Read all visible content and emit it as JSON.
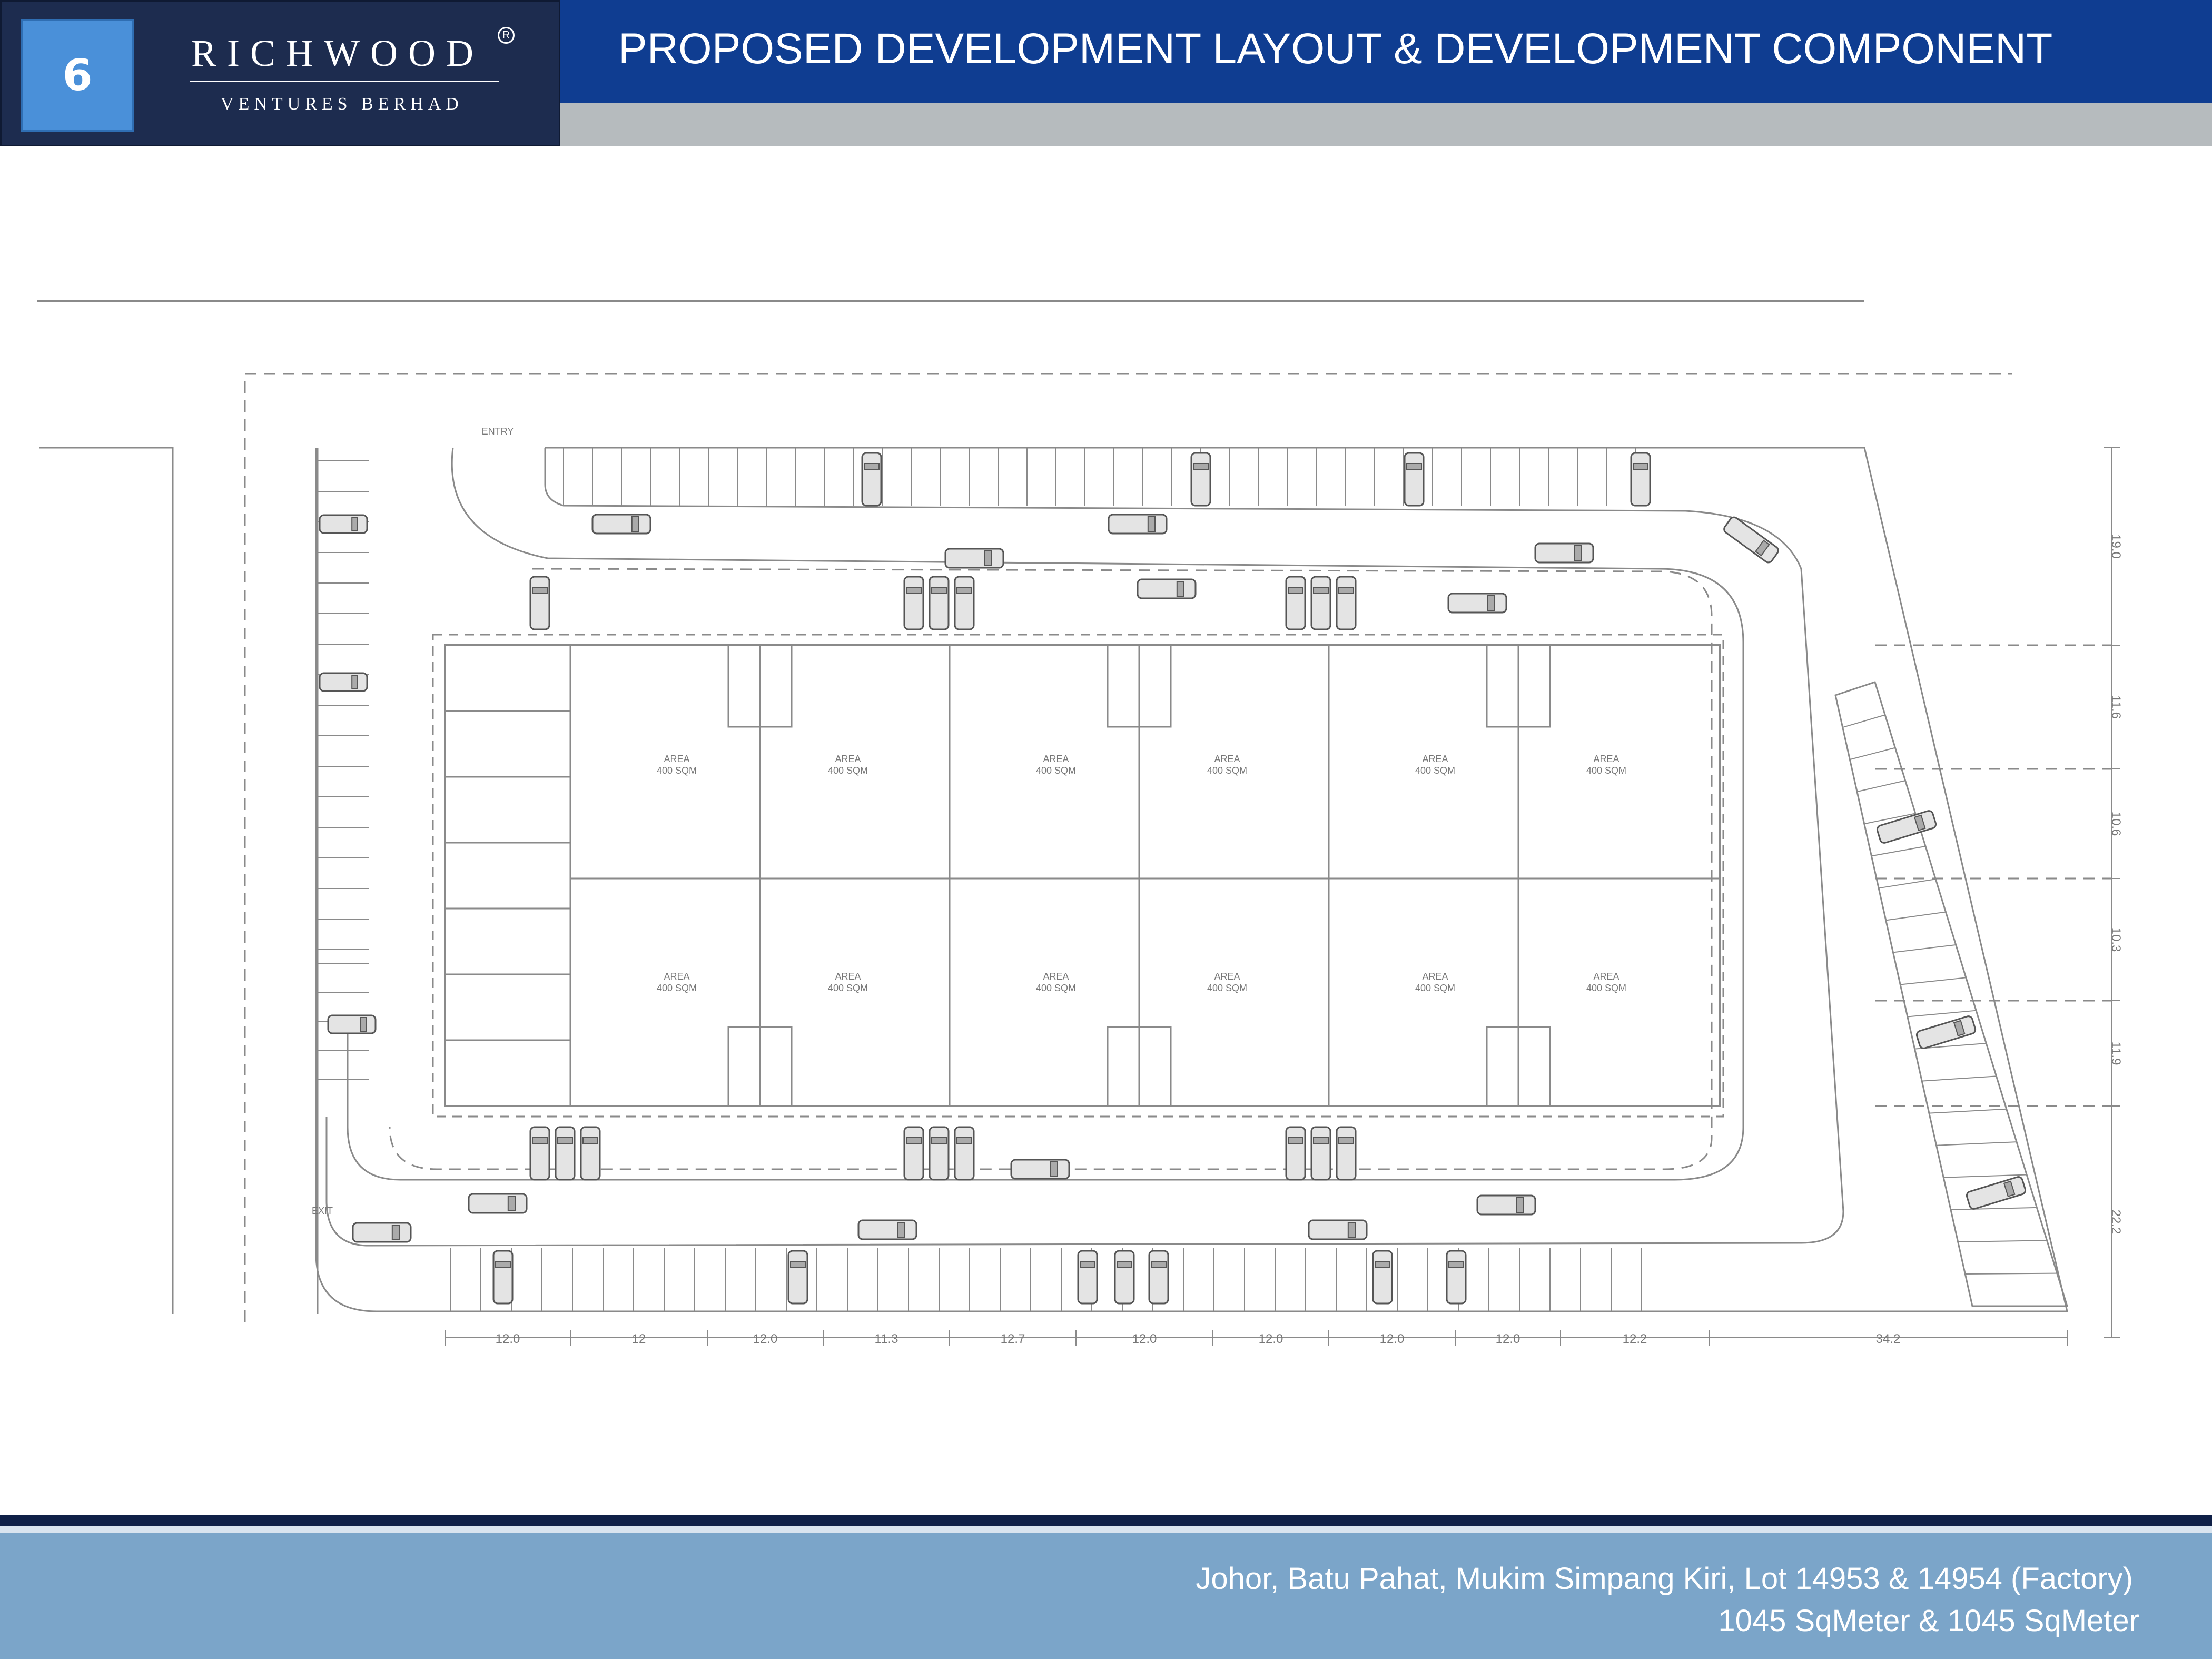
{
  "header": {
    "page_number": "6",
    "brand_name": "RICHWOOD",
    "brand_mark": "R",
    "brand_sub": "VENTURES BERHAD",
    "title": "PROPOSED DEVELOPMENT LAYOUT & DEVELOPMENT COMPONENT"
  },
  "plan": {
    "entry_label": "ENTRY",
    "exit_label": "EXIT",
    "area_label": "AREA",
    "area_value": "400 SQM",
    "bottom_dimensions": [
      "12.0",
      "12",
      "12.0",
      "11.3",
      "12.7",
      "12.0",
      "12.0",
      "12.0",
      "12.0",
      "12.2",
      "34.2"
    ],
    "right_dimensions": [
      "19.0",
      "11.6",
      "10.6",
      "10.3",
      "11.9",
      "22.2"
    ]
  },
  "footer": {
    "location": "Johor, Batu Pahat, Mukim Simpang Kiri, Lot 14953 & 14954 (Factory)",
    "size": "1045 SqMeter & 1045 SqMeter"
  },
  "colors": {
    "logo_bg": "#1d2c4f",
    "badge": "#4a90d9",
    "title_bar": "#0f3d91",
    "footer_bar": "#7ba5c9"
  }
}
